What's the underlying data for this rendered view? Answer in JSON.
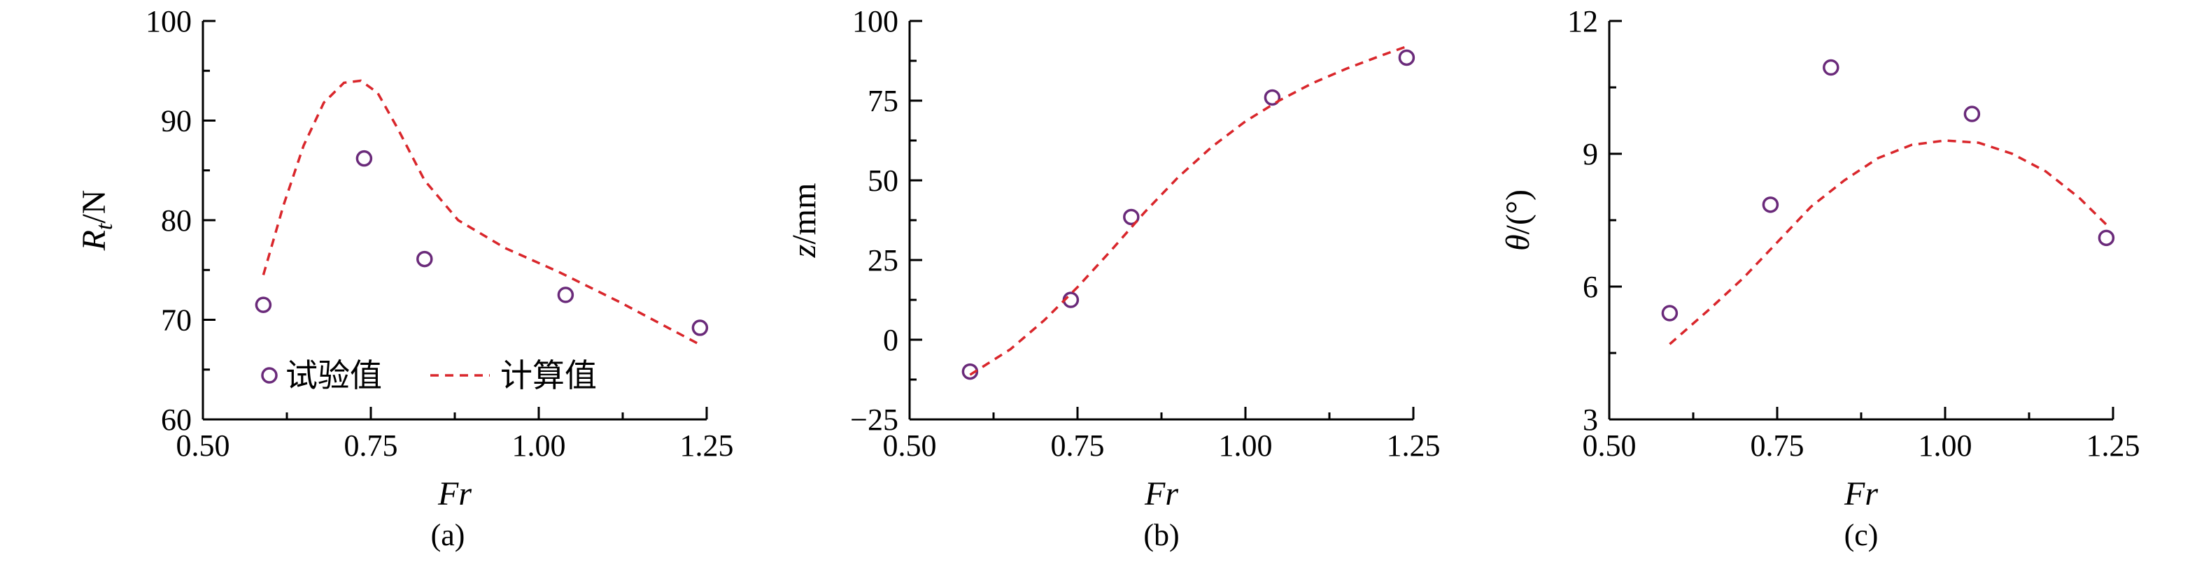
{
  "chart_data": [
    {
      "type": "scatter",
      "panel": "(a)",
      "xlabel": "Fr",
      "ylabel_main": "R",
      "ylabel_sub": "t",
      "ylabel_unit": "/N",
      "xlim": [
        0.5,
        1.25
      ],
      "ylim": [
        60,
        100
      ],
      "xticks": [
        0.5,
        0.75,
        1.0,
        1.25
      ],
      "xtick_labels": [
        "0.50",
        "0.75",
        "1.00",
        "1.25"
      ],
      "yticks": [
        60,
        70,
        80,
        90,
        100
      ],
      "ytick_labels": [
        "60",
        "70",
        "80",
        "90",
        "100"
      ],
      "legend": {
        "placement": "bottom-left",
        "entries": [
          "试验值",
          "计算值"
        ]
      },
      "series": [
        {
          "name": "试验值",
          "kind": "markers",
          "x": [
            0.59,
            0.74,
            0.83,
            1.04,
            1.24
          ],
          "y": [
            71.5,
            86.2,
            76.1,
            72.5,
            69.2
          ]
        },
        {
          "name": "计算值",
          "kind": "dashed-line",
          "x": [
            0.59,
            0.62,
            0.65,
            0.68,
            0.71,
            0.735,
            0.76,
            0.79,
            0.83,
            0.88,
            0.95,
            1.03,
            1.12,
            1.24
          ],
          "y": [
            74.5,
            81.5,
            87.5,
            91.8,
            93.8,
            94.0,
            92.8,
            89.2,
            84.0,
            80.0,
            77.2,
            74.8,
            71.8,
            67.5
          ]
        }
      ]
    },
    {
      "type": "scatter",
      "panel": "(b)",
      "xlabel": "Fr",
      "ylabel_main": "z",
      "ylabel_sub": "",
      "ylabel_unit": "/mm",
      "xlim": [
        0.5,
        1.25
      ],
      "ylim": [
        -25,
        100
      ],
      "xticks": [
        0.5,
        0.75,
        1.0,
        1.25
      ],
      "xtick_labels": [
        "0.50",
        "0.75",
        "1.00",
        "1.25"
      ],
      "yticks": [
        -25,
        0,
        25,
        50,
        75,
        100
      ],
      "ytick_labels": [
        "−25",
        "0",
        "25",
        "50",
        "75",
        "100"
      ],
      "series": [
        {
          "name": "试验值",
          "kind": "markers",
          "x": [
            0.59,
            0.74,
            0.83,
            1.04,
            1.24
          ],
          "y": [
            -10,
            12.5,
            38.5,
            76,
            88.5
          ]
        },
        {
          "name": "计算值",
          "kind": "dashed-line",
          "x": [
            0.59,
            0.65,
            0.7,
            0.75,
            0.8,
            0.85,
            0.9,
            0.95,
            1.0,
            1.05,
            1.1,
            1.15,
            1.2,
            1.24
          ],
          "y": [
            -11,
            -3,
            6,
            16.5,
            28,
            40,
            51,
            60.5,
            68.5,
            75,
            80.5,
            85,
            89,
            92
          ]
        }
      ]
    },
    {
      "type": "scatter",
      "panel": "(c)",
      "xlabel": "Fr",
      "ylabel_main": "θ",
      "ylabel_sub": "",
      "ylabel_unit": "/(°)",
      "xlim": [
        0.5,
        1.25
      ],
      "ylim": [
        3,
        12
      ],
      "xticks": [
        0.5,
        0.75,
        1.0,
        1.25
      ],
      "xtick_labels": [
        "0.50",
        "0.75",
        "1.00",
        "1.25"
      ],
      "yticks": [
        3,
        6,
        9,
        12
      ],
      "ytick_labels": [
        "3",
        "6",
        "9",
        "12"
      ],
      "series": [
        {
          "name": "试验值",
          "kind": "markers",
          "x": [
            0.59,
            0.74,
            0.83,
            1.04,
            1.24
          ],
          "y": [
            5.4,
            7.85,
            10.95,
            9.9,
            7.1
          ]
        },
        {
          "name": "计算值",
          "kind": "dashed-line",
          "x": [
            0.59,
            0.65,
            0.7,
            0.75,
            0.8,
            0.85,
            0.9,
            0.95,
            1.0,
            1.05,
            1.1,
            1.15,
            1.2,
            1.24
          ],
          "y": [
            4.7,
            5.5,
            6.2,
            7.0,
            7.8,
            8.4,
            8.9,
            9.2,
            9.3,
            9.25,
            9.0,
            8.6,
            8.0,
            7.4
          ]
        }
      ]
    }
  ]
}
